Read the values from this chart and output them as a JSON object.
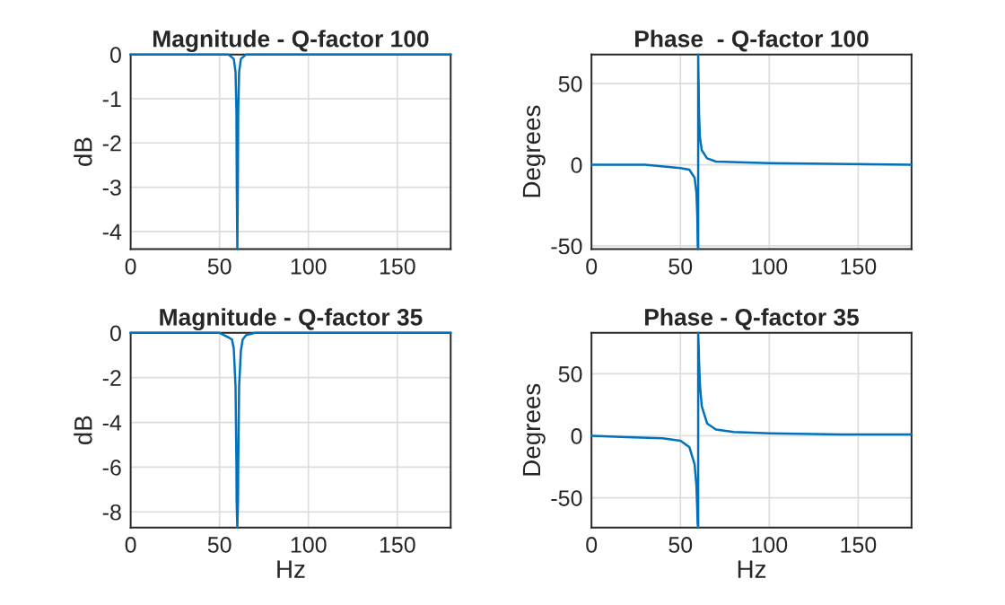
{
  "chart_data": [
    {
      "type": "line",
      "title": "Magnitude - Q-factor 100",
      "ylabel": "dB",
      "xlim": [
        0,
        180
      ],
      "xticks": [
        0,
        50,
        100,
        150
      ],
      "ylim": [
        -4.4,
        0
      ],
      "yticks": [
        -4,
        -3,
        -2,
        -1,
        0
      ],
      "grid": true,
      "series": [
        {
          "color": "#0072bd",
          "x": [
            0,
            50,
            55,
            58,
            59,
            59.5,
            59.7,
            60,
            60.3,
            60.5,
            61,
            62,
            65,
            100,
            180
          ],
          "values": [
            0,
            0,
            0,
            -0.1,
            -0.4,
            -1.3,
            -3.0,
            -4.4,
            -3.0,
            -1.3,
            -0.4,
            -0.1,
            0,
            0,
            0
          ]
        }
      ]
    },
    {
      "type": "line",
      "title": "Phase  - Q-factor 100",
      "ylabel": "Degrees",
      "xlim": [
        0,
        180
      ],
      "xticks": [
        0,
        50,
        100,
        150
      ],
      "ylim": [
        -52,
        68
      ],
      "yticks": [
        -50,
        0,
        50
      ],
      "grid": true,
      "series": [
        {
          "color": "#0072bd",
          "x": [
            0,
            30,
            50,
            55,
            58,
            59,
            59.5,
            59.75,
            60,
            60,
            60.25,
            60.5,
            61,
            62,
            65,
            70,
            100,
            180
          ],
          "values": [
            0,
            0,
            -2,
            -3,
            -8,
            -17,
            -31,
            -50,
            -52,
            68,
            50,
            31,
            17,
            9,
            4,
            2,
            1,
            0
          ]
        }
      ]
    },
    {
      "type": "line",
      "title": "Magnitude - Q-factor 35",
      "xlabel": "Hz",
      "ylabel": "dB",
      "xlim": [
        0,
        180
      ],
      "xticks": [
        0,
        50,
        100,
        150
      ],
      "ylim": [
        -8.7,
        0
      ],
      "yticks": [
        -8,
        -6,
        -4,
        -2,
        0
      ],
      "grid": true,
      "series": [
        {
          "color": "#0072bd",
          "x": [
            0,
            50,
            55,
            57,
            58,
            59,
            59.5,
            59.6,
            60,
            60.4,
            60.5,
            61,
            62,
            63,
            65,
            70,
            100,
            180
          ],
          "values": [
            0,
            0,
            -0.2,
            -0.3,
            -0.7,
            -2.4,
            -5.9,
            -7.5,
            -8.7,
            -7.5,
            -6.0,
            -2.4,
            -0.8,
            -0.3,
            -0.1,
            0,
            0,
            0
          ]
        }
      ]
    },
    {
      "type": "line",
      "title": "Phase - Q-factor 35",
      "xlabel": "Hz",
      "ylabel": "Degrees",
      "xlim": [
        0,
        180
      ],
      "xticks": [
        0,
        50,
        100,
        150
      ],
      "ylim": [
        -74,
        83
      ],
      "yticks": [
        -50,
        0,
        50
      ],
      "grid": true,
      "series": [
        {
          "color": "#0072bd",
          "x": [
            0,
            20,
            40,
            50,
            55,
            58,
            59,
            59.5,
            59.7,
            60,
            60,
            60.3,
            60.5,
            61,
            62,
            65,
            70,
            80,
            100,
            140,
            180
          ],
          "values": [
            0,
            -1,
            -2,
            -4,
            -9,
            -23,
            -40,
            -60,
            -71,
            -74,
            83,
            71,
            60,
            41,
            24,
            10,
            5,
            3,
            2,
            1,
            1
          ]
        }
      ]
    }
  ]
}
